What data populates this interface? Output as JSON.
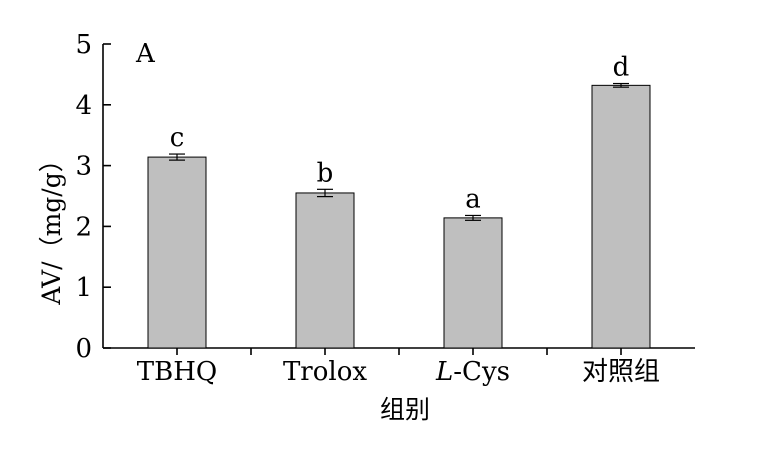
{
  "chart_data": {
    "type": "bar",
    "panel_label": "A",
    "xlabel": "组别",
    "ylabel": "AV/（mg/g）",
    "ylim": [
      0,
      5
    ],
    "yticks": [
      0,
      1,
      2,
      3,
      4,
      5
    ],
    "categories": [
      "TBHQ",
      "Trolox",
      "L-Cys",
      "对照组"
    ],
    "category_italic_prefix": [
      "",
      "",
      "L",
      ""
    ],
    "values": [
      3.14,
      2.55,
      2.14,
      4.32
    ],
    "errors": [
      0.05,
      0.06,
      0.04,
      0.03
    ],
    "significance": [
      "c",
      "b",
      "a",
      "d"
    ],
    "bar_color": "#bfbfbf",
    "grid": false
  }
}
